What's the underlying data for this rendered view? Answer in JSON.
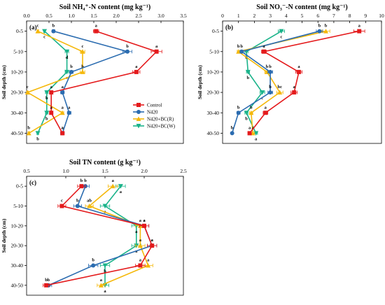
{
  "figure": {
    "series_colors": [
      "#e41a1c",
      "#2b6cb0",
      "#f5b80a",
      "#1ab38a"
    ],
    "series_markers": [
      "square",
      "circle",
      "triangle-up",
      "triangle-down"
    ]
  },
  "chart_data": [
    {
      "type": "line",
      "panel": "(a)",
      "title": "Soil NH₄⁺-N content (mg kg⁻¹)",
      "xlabel": "Soil NH₄⁺-N content (mg kg⁻¹)",
      "ylabel": "Soil depth (cm)",
      "xlim": [
        0,
        3.5
      ],
      "xticks": [
        "0.0",
        "0.5",
        "1.0",
        "1.5",
        "2.0",
        "2.5",
        "3.0",
        "3.5"
      ],
      "categories": [
        "0-5",
        "5-10",
        "10-20",
        "20-30",
        "30-40",
        "40-50"
      ],
      "series": [
        {
          "name": "Control",
          "values": [
            1.55,
            2.9,
            2.45,
            0.55,
            0.55,
            0.8
          ],
          "errors": [
            0.06,
            0.12,
            0.08,
            0.03,
            0.03,
            0.03
          ],
          "letters": [
            "a",
            "a",
            "a",
            "a",
            "a",
            "a"
          ]
        },
        {
          "name": "N420",
          "values": [
            0.6,
            2.25,
            1.0,
            0.8,
            0.95,
            0.8
          ],
          "errors": [
            0.03,
            0.1,
            0.04,
            0.04,
            0.04,
            0.04
          ],
          "letters": [
            "b",
            "b",
            "b",
            "a",
            "a",
            "a"
          ]
        },
        {
          "name": "N420+BC(R)",
          "values": [
            0.25,
            1.25,
            1.25,
            0.02,
            0.8,
            0.05
          ],
          "errors": [
            0.02,
            0.05,
            0.05,
            0.02,
            0.03,
            0.02
          ],
          "letters": [
            "c",
            "c",
            "b",
            "c",
            "a",
            "b"
          ]
        },
        {
          "name": "N420+BC(W)",
          "values": [
            0.4,
            0.9,
            0.9,
            0.45,
            0.45,
            0.25
          ],
          "errors": [
            0.02,
            0.04,
            0.04,
            0.03,
            0.03,
            0.02
          ],
          "letters": [
            "c",
            "d",
            "c",
            "b",
            "b",
            "b"
          ]
        }
      ],
      "legend": "lower-right"
    },
    {
      "type": "line",
      "panel": "(b)",
      "title": "Soil NO₃⁻-N content (mg kg⁻¹)",
      "xlabel": "Soil NO₃⁻-N content (mg kg⁻¹)",
      "ylabel": "Soil depth (cm)",
      "xlim": [
        0,
        10
      ],
      "xticks": [
        "0",
        "1",
        "2",
        "3",
        "4",
        "5",
        "6",
        "7",
        "8",
        "9",
        "10"
      ],
      "categories": [
        "0-5",
        "5-10",
        "10-20",
        "20-30",
        "30-40",
        "40-50"
      ],
      "series": [
        {
          "name": "Control",
          "values": [
            8.6,
            2.6,
            4.8,
            4.5,
            2.7,
            1.7
          ],
          "errors": [
            0.35,
            0.15,
            0.2,
            0.2,
            0.15,
            0.1
          ],
          "letters": [
            "a",
            "a",
            "a",
            "a",
            "a",
            "a"
          ]
        },
        {
          "name": "N420",
          "values": [
            6.1,
            1.2,
            3.0,
            3.0,
            1.0,
            0.6
          ],
          "errors": [
            0.2,
            0.1,
            0.15,
            0.15,
            0.1,
            0.05
          ],
          "letters": [
            "b",
            "b",
            "b",
            "b",
            "b",
            "b"
          ]
        },
        {
          "name": "N420+BC(R)",
          "values": [
            6.5,
            1.0,
            2.8,
            3.6,
            1.8,
            1.9
          ],
          "errors": [
            0.25,
            0.08,
            0.15,
            0.2,
            0.1,
            0.1
          ],
          "letters": [
            "b",
            "b",
            "b",
            "bc",
            "b",
            "a"
          ]
        },
        {
          "name": "N420+BC(W)",
          "values": [
            3.7,
            1.5,
            1.6,
            2.5,
            1.5,
            2.1
          ],
          "errors": [
            0.2,
            0.1,
            0.1,
            0.15,
            0.1,
            0.1
          ],
          "letters": [
            "c",
            "b",
            "b",
            "c",
            "b",
            "a"
          ]
        }
      ]
    },
    {
      "type": "line",
      "panel": "(c)",
      "title": "Soil TN content (g kg⁻¹)",
      "xlabel": "Soil TN content (g kg⁻¹)",
      "ylabel": "Soil depth (cm)",
      "xlim": [
        0.5,
        2.5
      ],
      "xticks": [
        "0.5",
        "1.0",
        "1.5",
        "2.0",
        "2.5"
      ],
      "categories": [
        "0-5",
        "5-10",
        "10-20",
        "20-30",
        "30-40",
        "40-50"
      ],
      "series": [
        {
          "name": "Control",
          "values": [
            1.2,
            0.95,
            2.0,
            2.1,
            1.95,
            0.75
          ],
          "errors": [
            0.05,
            0.05,
            0.06,
            0.06,
            0.06,
            0.04
          ],
          "letters": [
            "b",
            "c",
            "a",
            "a",
            "a",
            "b"
          ]
        },
        {
          "name": "N420",
          "values": [
            1.25,
            1.15,
            2.0,
            2.1,
            1.35,
            0.78
          ],
          "errors": [
            0.05,
            0.05,
            0.06,
            0.06,
            0.06,
            0.04
          ],
          "letters": [
            "b",
            "b",
            "a",
            "a",
            "b",
            "b"
          ]
        },
        {
          "name": "N420+BC(R)",
          "values": [
            1.6,
            1.3,
            1.95,
            1.95,
            2.05,
            1.45
          ],
          "errors": [
            0.06,
            0.05,
            0.06,
            0.06,
            0.06,
            0.05
          ],
          "letters": [
            "a",
            "ab",
            "a",
            "a",
            "a",
            "a"
          ]
        },
        {
          "name": "N420+BC(W)",
          "values": [
            1.7,
            1.5,
            1.9,
            1.9,
            1.5,
            1.5
          ],
          "errors": [
            0.06,
            0.06,
            0.06,
            0.06,
            0.06,
            0.05
          ],
          "letters": [
            "a",
            "a",
            "a",
            "a",
            "b",
            "a"
          ]
        }
      ]
    }
  ]
}
